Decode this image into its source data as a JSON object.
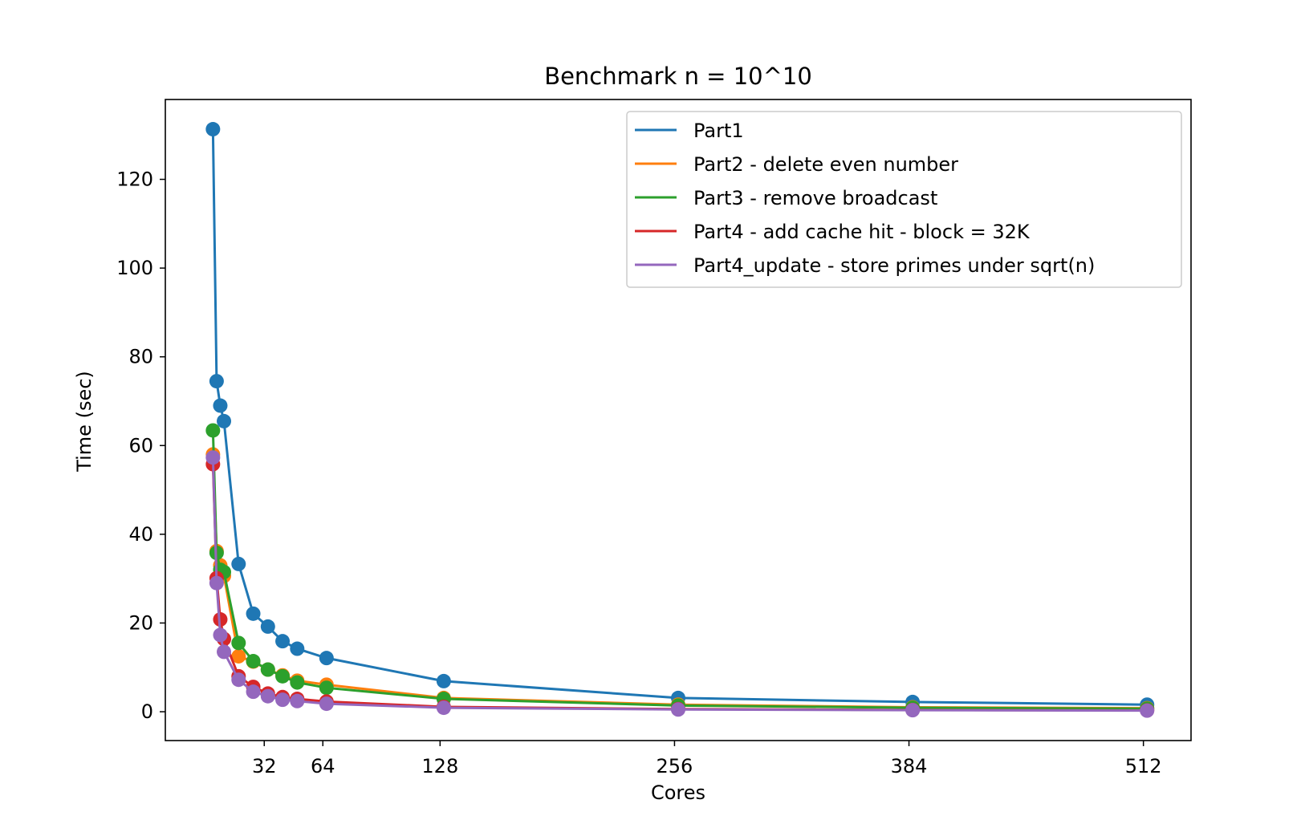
{
  "chart_data": {
    "type": "line",
    "title": "Benchmark n = 10^10",
    "xlabel": "Cores",
    "ylabel": "Time (sec)",
    "xlim": [
      -22,
      538
    ],
    "ylim": [
      -6.5,
      138
    ],
    "xticks": [
      32,
      64,
      128,
      256,
      384,
      512
    ],
    "yticks": [
      0,
      20,
      40,
      60,
      80,
      100,
      120
    ],
    "legend_position": "top-right",
    "grid": false,
    "marker": "circle",
    "x": [
      4,
      6,
      8,
      10,
      18,
      26,
      34,
      42,
      50,
      66,
      130,
      258,
      386,
      514
    ],
    "series": [
      {
        "name": "Part1",
        "color": "#1f77b4",
        "values": [
          131.3,
          74.5,
          69.0,
          65.5,
          33.3,
          22.1,
          19.2,
          15.9,
          14.2,
          12.1,
          6.9,
          3.1,
          2.2,
          1.6
        ]
      },
      {
        "name": "Part2 - delete even number",
        "color": "#ff7f0e",
        "values": [
          58.0,
          36.2,
          33.0,
          30.6,
          12.5,
          11.3,
          9.5,
          8.2,
          7.0,
          6.1,
          3.1,
          1.6,
          1.0,
          0.8
        ]
      },
      {
        "name": "Part3 - remove broadcast",
        "color": "#2ca02c",
        "values": [
          63.4,
          35.8,
          32.0,
          31.5,
          15.5,
          11.4,
          9.5,
          8.0,
          6.6,
          5.4,
          2.9,
          1.4,
          0.9,
          0.7
        ]
      },
      {
        "name": "Part4 - add cache hit - block = 32K",
        "color": "#d62728",
        "values": [
          55.8,
          30.1,
          20.8,
          16.4,
          8.0,
          5.6,
          4.1,
          3.3,
          2.9,
          2.3,
          1.1,
          0.6,
          0.4,
          0.3
        ]
      },
      {
        "name": "Part4_update - store primes under sqrt(n)",
        "color": "#9467bd",
        "values": [
          57.3,
          29.0,
          17.3,
          13.5,
          7.2,
          4.5,
          3.5,
          2.7,
          2.4,
          1.8,
          0.9,
          0.5,
          0.35,
          0.25
        ]
      }
    ]
  }
}
